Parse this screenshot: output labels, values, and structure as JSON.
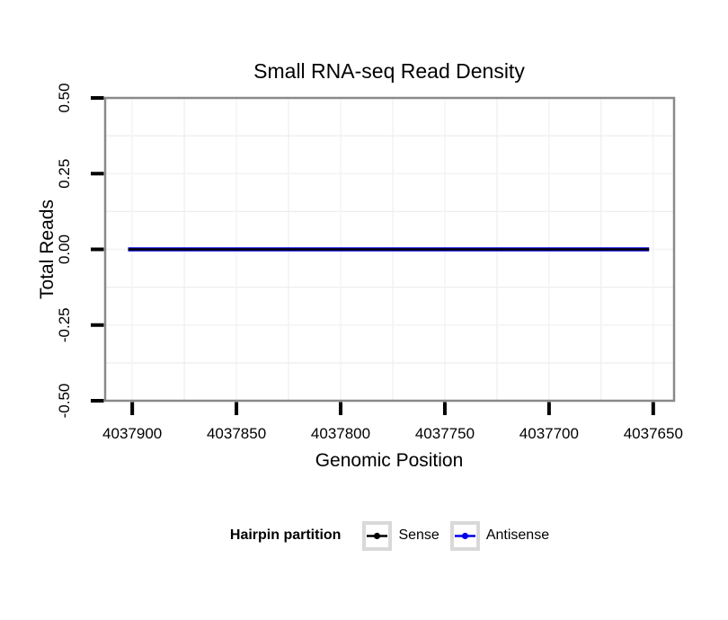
{
  "chart_data": {
    "type": "line",
    "title": "Small RNA-seq Read Density",
    "xlabel": "Genomic Position",
    "ylabel": "Total Reads",
    "x_axis_reversed": true,
    "xlim": [
      4037913,
      4037640
    ],
    "ylim": [
      -0.5,
      0.5
    ],
    "x_tick_values": [
      4037900,
      4037850,
      4037800,
      4037750,
      4037700,
      4037650
    ],
    "x_tick_labels": [
      "4037900",
      "4037850",
      "4037800",
      "4037750",
      "4037700",
      "4037650"
    ],
    "y_tick_values": [
      0.5,
      0.25,
      0,
      -0.25,
      -0.5
    ],
    "y_tick_labels": [
      "0.50",
      "0.25",
      "0.00",
      "-0.25",
      "-0.50"
    ],
    "grid": true,
    "series": [
      {
        "name": "Sense",
        "color": "#000000",
        "x": [
          4037902,
          4037652
        ],
        "y": [
          0,
          0
        ]
      },
      {
        "name": "Antisense",
        "color": "#0000ee",
        "x": [
          4037902,
          4037652
        ],
        "y": [
          0,
          0
        ]
      }
    ]
  },
  "legend": {
    "title": "Hairpin partition",
    "entries": [
      {
        "label": "Sense",
        "color": "#000000"
      },
      {
        "label": "Antisense",
        "color": "#0000ee"
      }
    ]
  },
  "colors": {
    "background": "#ffffff",
    "panel_border": "#898989",
    "tick": "#000000",
    "grid_major": "#f3f3f3",
    "grid_minor": "#eeeeee",
    "legend_key_border": "#d9d9d9",
    "text": "#000000"
  }
}
